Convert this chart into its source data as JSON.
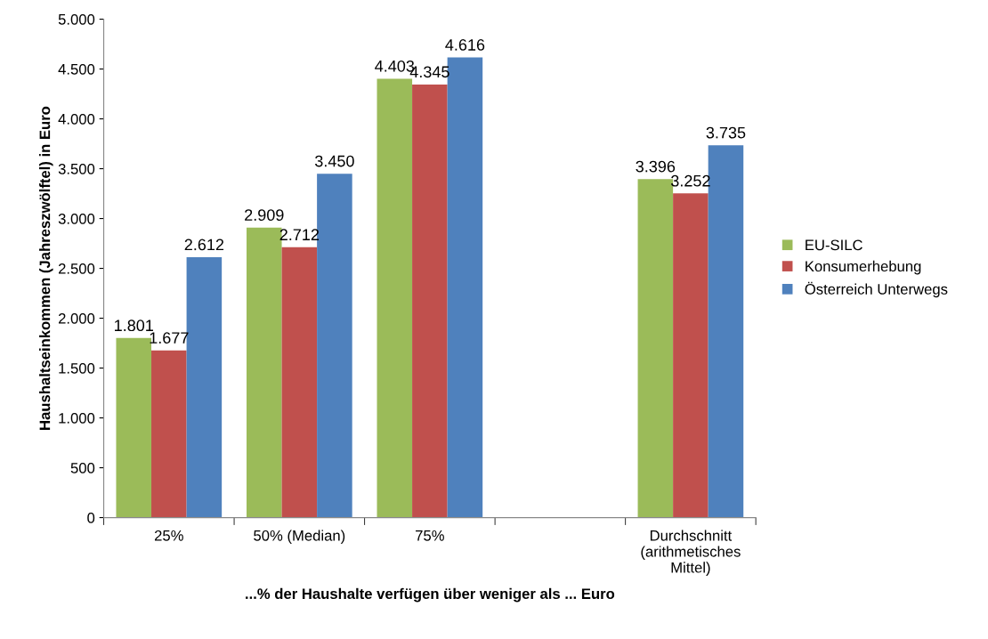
{
  "chart_data": {
    "type": "bar",
    "xlabel": "...% der Haushalte verfügen über weniger als ... Euro",
    "ylabel": "Haushaltseinkommen (Jahreszwölftel) in Euro",
    "categories": [
      "25%",
      "50% (Median)",
      "75%",
      null,
      "Durchschnitt\n(arithmetisches\nMittel)"
    ],
    "series": [
      {
        "name": "EU-SILC",
        "color": "#9bbb59",
        "values": [
          1801,
          2909,
          4403,
          null,
          3396
        ],
        "value_labels": [
          "1.801",
          "2.909",
          "4.403",
          null,
          "3.396"
        ]
      },
      {
        "name": "Konsumerhebung",
        "color": "#c0504d",
        "values": [
          1677,
          2712,
          4345,
          null,
          3252
        ],
        "value_labels": [
          "1.677",
          "2.712",
          "4.345",
          null,
          "3.252"
        ]
      },
      {
        "name": "Österreich Unterwegs",
        "color": "#4f81bd",
        "values": [
          2612,
          3450,
          4616,
          null,
          3735
        ],
        "value_labels": [
          "2.612",
          "3.450",
          "4.616",
          null,
          "3.735"
        ]
      }
    ],
    "ylim": [
      0,
      5000
    ],
    "yticks": [
      {
        "value": 0,
        "label": "0"
      },
      {
        "value": 500,
        "label": "500"
      },
      {
        "value": 1000,
        "label": "1.000"
      },
      {
        "value": 1500,
        "label": "1.500"
      },
      {
        "value": 2000,
        "label": "2.000"
      },
      {
        "value": 2500,
        "label": "2.500"
      },
      {
        "value": 3000,
        "label": "3.000"
      },
      {
        "value": 3500,
        "label": "3.500"
      },
      {
        "value": 4000,
        "label": "4.000"
      },
      {
        "value": 4500,
        "label": "4.500"
      },
      {
        "value": 5000,
        "label": "5.000"
      }
    ],
    "grid": false,
    "legend": "right"
  }
}
